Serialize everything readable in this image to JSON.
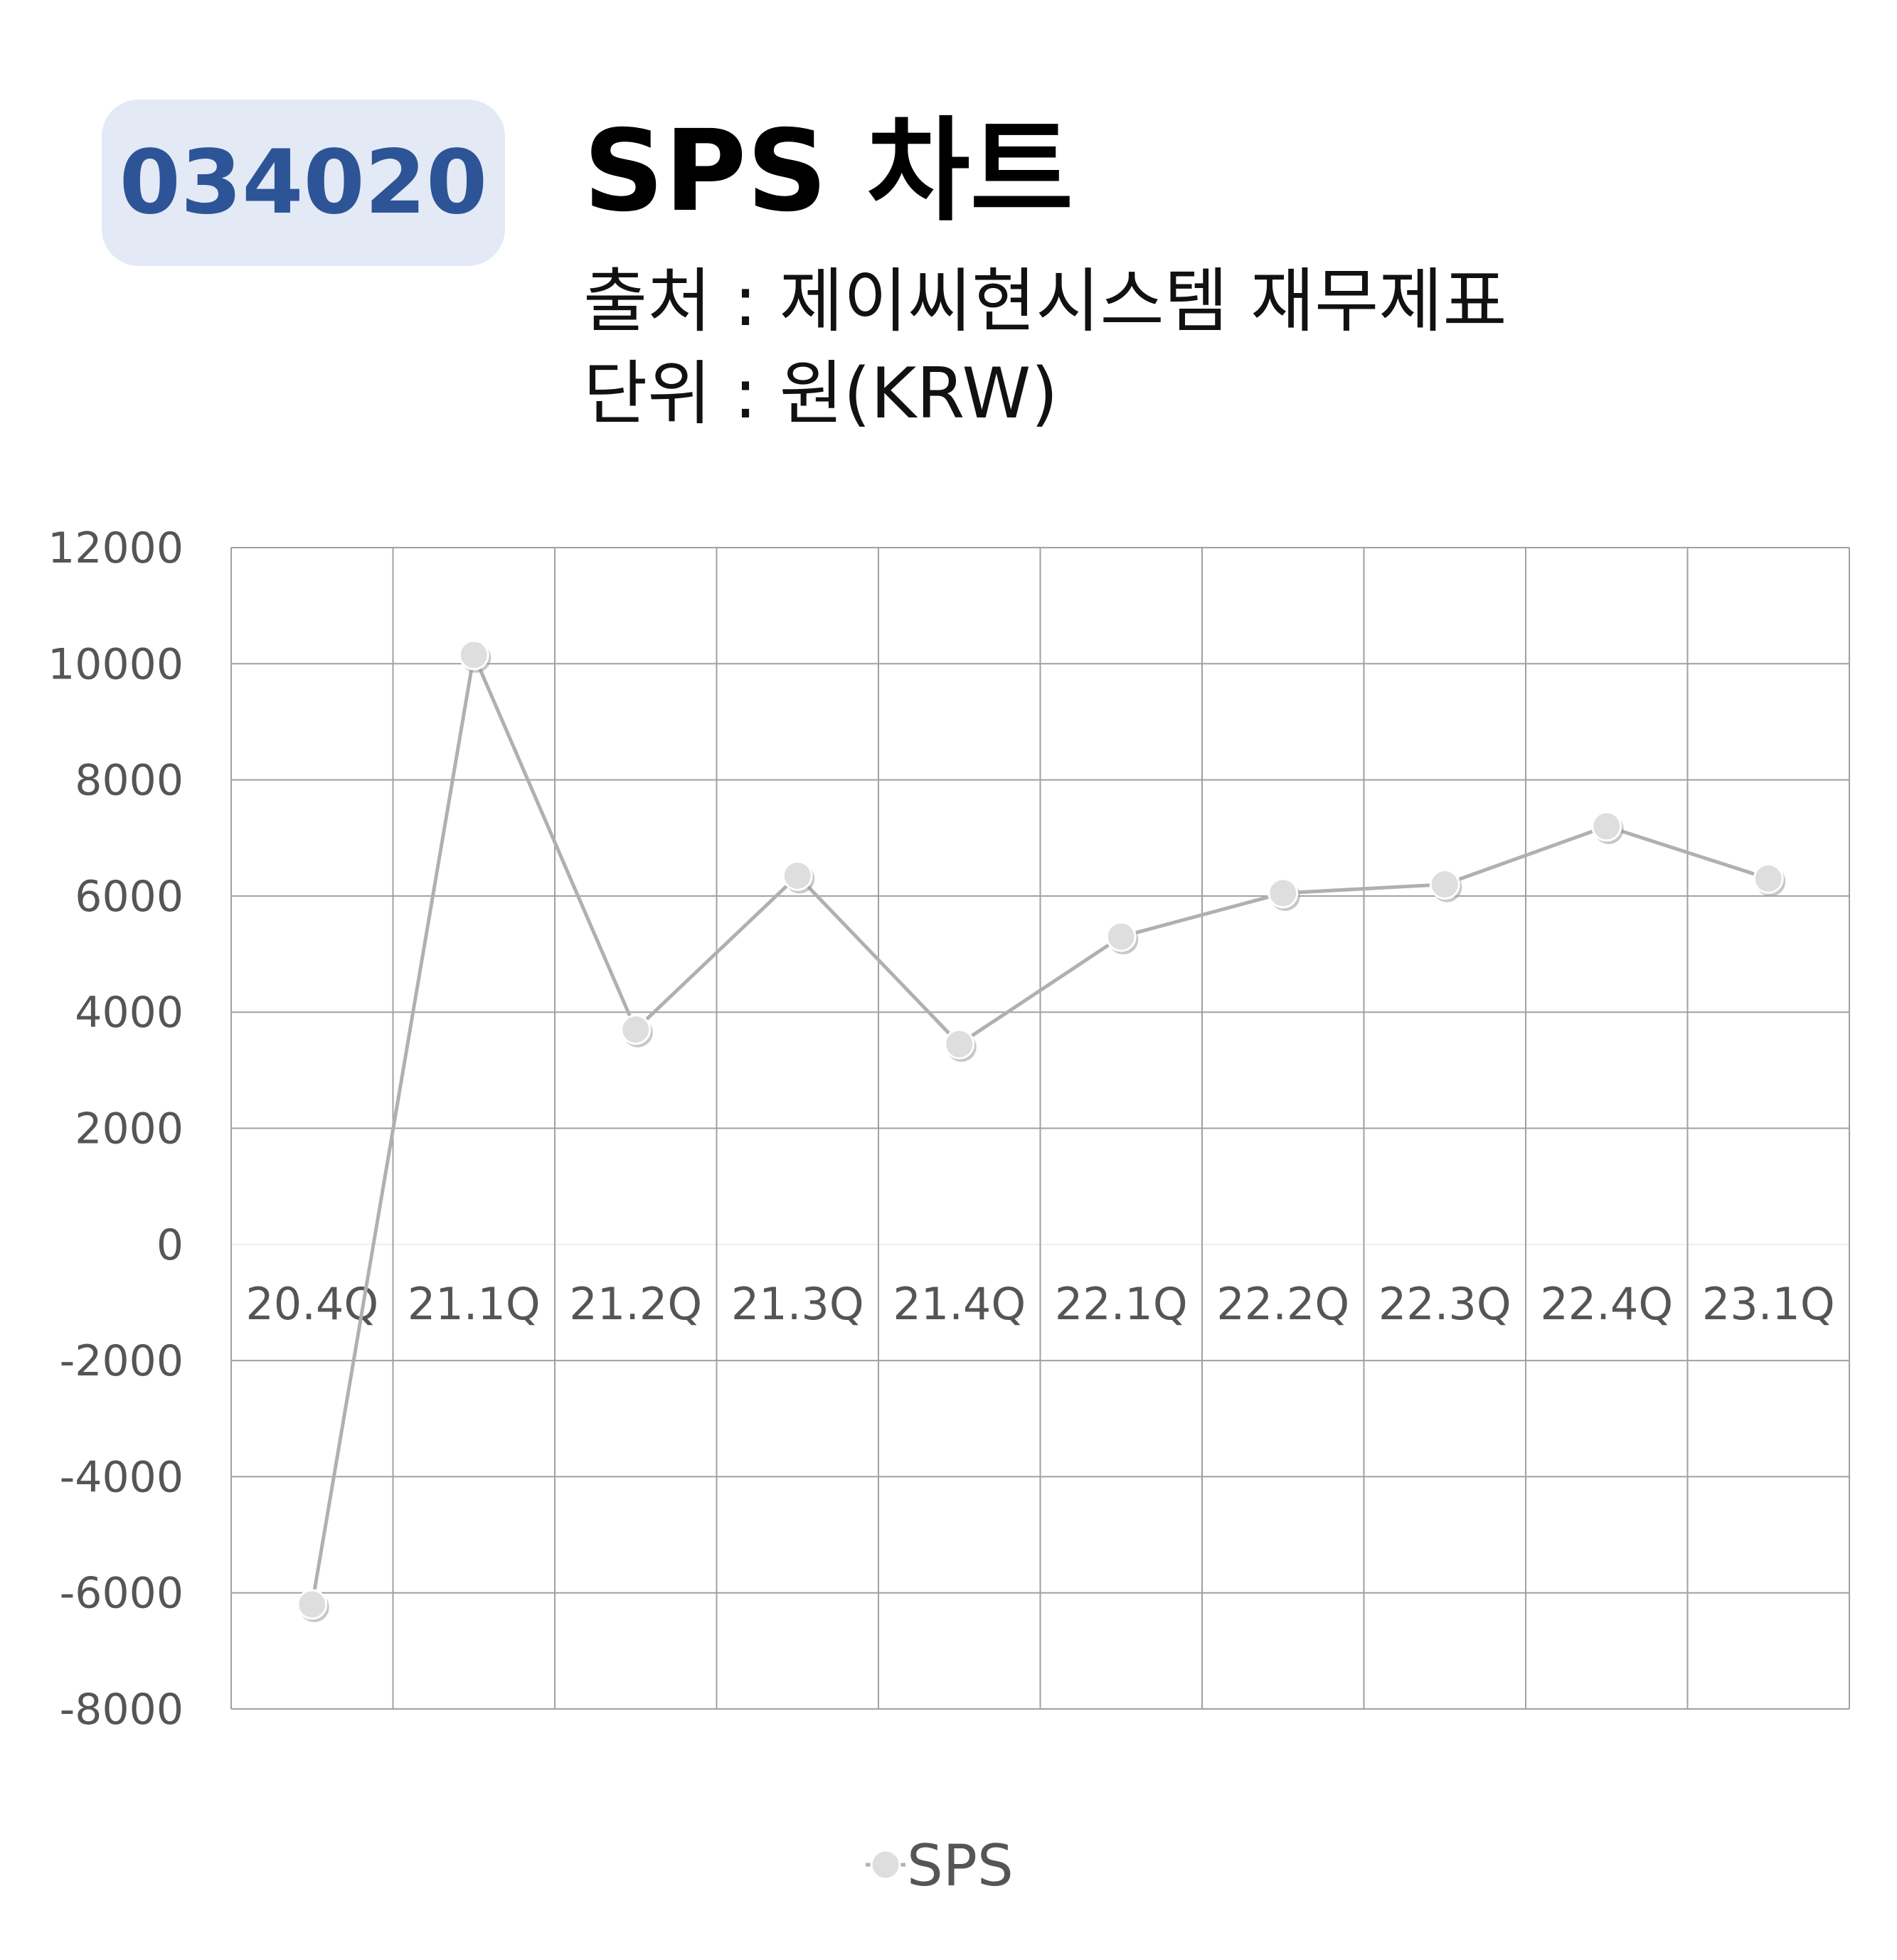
{
  "header": {
    "ticker": "034020",
    "title": "SPS 차트",
    "source": "출처 : 제이씨현시스템 재무제표",
    "unit": "단위 : 원(KRW)"
  },
  "colors": {
    "ticker_bg": "#e3e9f5",
    "ticker_text": "#2d5497",
    "series_line": "#b0b0b0",
    "marker_fill": "#dedede",
    "grid": "#a0a0a0"
  },
  "chart_data": {
    "type": "line",
    "categories": [
      "20.4Q",
      "21.1Q",
      "21.2Q",
      "21.3Q",
      "21.4Q",
      "22.1Q",
      "22.2Q",
      "22.3Q",
      "22.4Q",
      "23.1Q"
    ],
    "series": [
      {
        "name": "SPS",
        "values": [
          -6200,
          10150,
          3700,
          6350,
          3450,
          5300,
          6050,
          6200,
          7200,
          6300
        ]
      }
    ],
    "yticks": [
      12000,
      10000,
      8000,
      6000,
      4000,
      2000,
      0,
      -2000,
      -4000,
      -6000,
      -8000
    ],
    "ylim": [
      -8000,
      12000
    ],
    "grid": true,
    "legend_position": "bottom"
  }
}
